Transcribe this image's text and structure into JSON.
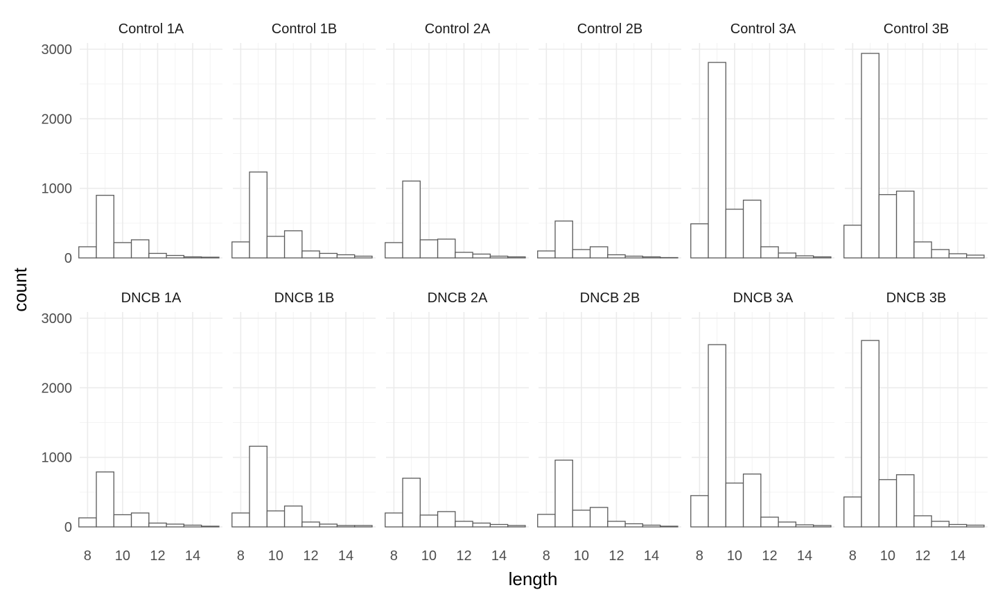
{
  "chart_data": {
    "type": "bar",
    "chart_kind": "histogram",
    "xlabel": "length",
    "ylabel": "count",
    "bin_width": 1,
    "bin_centers": [
      8,
      9,
      10,
      11,
      12,
      13,
      14,
      15
    ],
    "xlim": [
      7.55,
      15.7
    ],
    "ylim": [
      0,
      3000
    ],
    "x_ticks": [
      8,
      10,
      12,
      14
    ],
    "y_ticks": [
      0,
      1000,
      2000,
      3000
    ],
    "grid": true,
    "bar_fill": "#ffffff",
    "bar_outline": "#595959",
    "facets": [
      {
        "title": "Control 1A",
        "values": [
          160,
          900,
          220,
          260,
          65,
          35,
          15,
          10
        ]
      },
      {
        "title": "Control 1B",
        "values": [
          230,
          1235,
          310,
          390,
          100,
          65,
          45,
          25
        ]
      },
      {
        "title": "Control 2A",
        "values": [
          220,
          1105,
          260,
          270,
          80,
          55,
          25,
          15
        ]
      },
      {
        "title": "Control 2B",
        "values": [
          100,
          530,
          120,
          160,
          45,
          25,
          15,
          5
        ]
      },
      {
        "title": "Control 3A",
        "values": [
          490,
          2810,
          700,
          830,
          160,
          70,
          30,
          15
        ]
      },
      {
        "title": "Control 3B",
        "values": [
          470,
          2940,
          910,
          960,
          230,
          120,
          60,
          40
        ]
      },
      {
        "title": "DNCB 1A",
        "values": [
          130,
          790,
          175,
          200,
          55,
          40,
          25,
          10
        ]
      },
      {
        "title": "DNCB 1B",
        "values": [
          200,
          1160,
          230,
          300,
          70,
          40,
          20,
          20
        ]
      },
      {
        "title": "DNCB 2A",
        "values": [
          200,
          700,
          170,
          220,
          80,
          55,
          35,
          20
        ]
      },
      {
        "title": "DNCB 2B",
        "values": [
          180,
          960,
          240,
          280,
          80,
          45,
          25,
          10
        ]
      },
      {
        "title": "DNCB 3A",
        "values": [
          450,
          2620,
          630,
          760,
          140,
          70,
          30,
          20
        ]
      },
      {
        "title": "DNCB 3B",
        "values": [
          430,
          2680,
          680,
          750,
          160,
          80,
          35,
          25
        ]
      }
    ]
  }
}
